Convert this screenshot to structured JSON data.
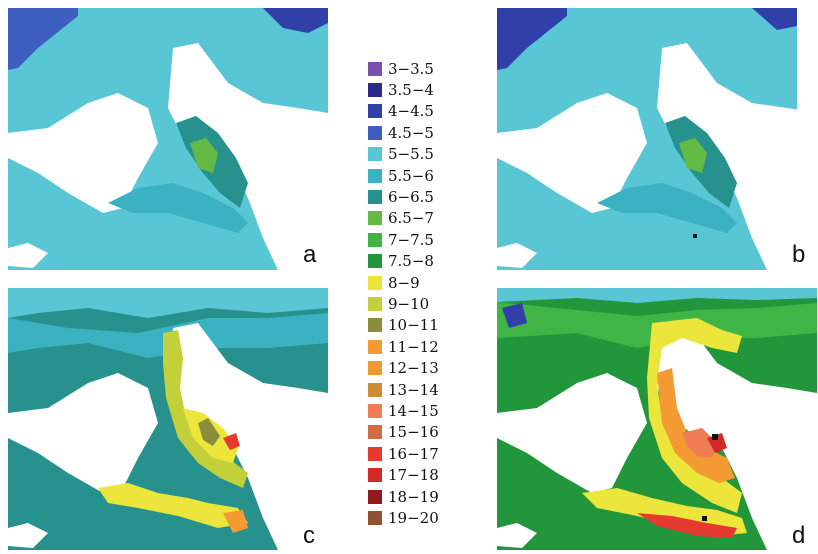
{
  "panels": [
    {
      "id": "a",
      "label": "a"
    },
    {
      "id": "b",
      "label": "b"
    },
    {
      "id": "c",
      "label": "c"
    },
    {
      "id": "d",
      "label": "d"
    }
  ],
  "legend": [
    {
      "label": "3−3.5",
      "color": "#7b4fb0"
    },
    {
      "label": "3.5−4",
      "color": "#2a2a8a"
    },
    {
      "label": "4−4.5",
      "color": "#3140a8"
    },
    {
      "label": "4.5−5",
      "color": "#3f5fc0"
    },
    {
      "label": "5−5.5",
      "color": "#59c6d6"
    },
    {
      "label": "5.5−6",
      "color": "#3ab2c2"
    },
    {
      "label": "6−6.5",
      "color": "#27918e"
    },
    {
      "label": "6.5−7",
      "color": "#63ba45"
    },
    {
      "label": "7−7.5",
      "color": "#3fb545"
    },
    {
      "label": "7.5−8",
      "color": "#21963a"
    },
    {
      "label": "8−9",
      "color": "#ebe53c"
    },
    {
      "label": "9−10",
      "color": "#c4d03a"
    },
    {
      "label": "10−11",
      "color": "#8c8d3c"
    },
    {
      "label": "11−12",
      "color": "#f39a33"
    },
    {
      "label": "12−13",
      "color": "#ee9a30"
    },
    {
      "label": "13−14",
      "color": "#cf8b35"
    },
    {
      "label": "14−15",
      "color": "#ef7c55"
    },
    {
      "label": "15−16",
      "color": "#d36b45"
    },
    {
      "label": "16−17",
      "color": "#e43a2f"
    },
    {
      "label": "17−18",
      "color": "#d42829"
    },
    {
      "label": "18−19",
      "color": "#8e1a1a"
    },
    {
      "label": "19−20",
      "color": "#8f5331"
    }
  ]
}
